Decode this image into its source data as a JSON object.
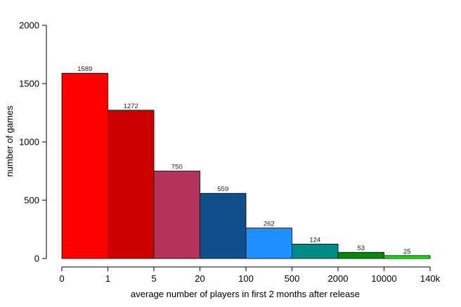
{
  "chart_data": {
    "type": "bar",
    "categories": [
      "0–1",
      "1–5",
      "5–20",
      "20–100",
      "100–500",
      "500–2000",
      "2000–10000",
      "10000–140k"
    ],
    "bin_edges": [
      "0",
      "1",
      "5",
      "20",
      "100",
      "500",
      "2000",
      "10000",
      "140k"
    ],
    "values": [
      1589,
      1272,
      750,
      559,
      262,
      124,
      53,
      25
    ],
    "data_labels": [
      "1589",
      "1272",
      "750",
      "559",
      "262",
      "124",
      "53",
      "25"
    ],
    "colors": [
      "#ff0000",
      "#cc0000",
      "#b3335c",
      "#114f8c",
      "#1e90ff",
      "#008b84",
      "#008b00",
      "#00ee00"
    ],
    "title": "",
    "xlabel": "average number of players in first 2 months after release",
    "ylabel": "number of games",
    "ylim": [
      0,
      2000
    ],
    "yticks": [
      0,
      500,
      1000,
      1500,
      2000
    ],
    "ytick_labels": [
      "0",
      "500",
      "1000",
      "1500",
      "2000"
    ],
    "grid": false,
    "legend": "none"
  }
}
